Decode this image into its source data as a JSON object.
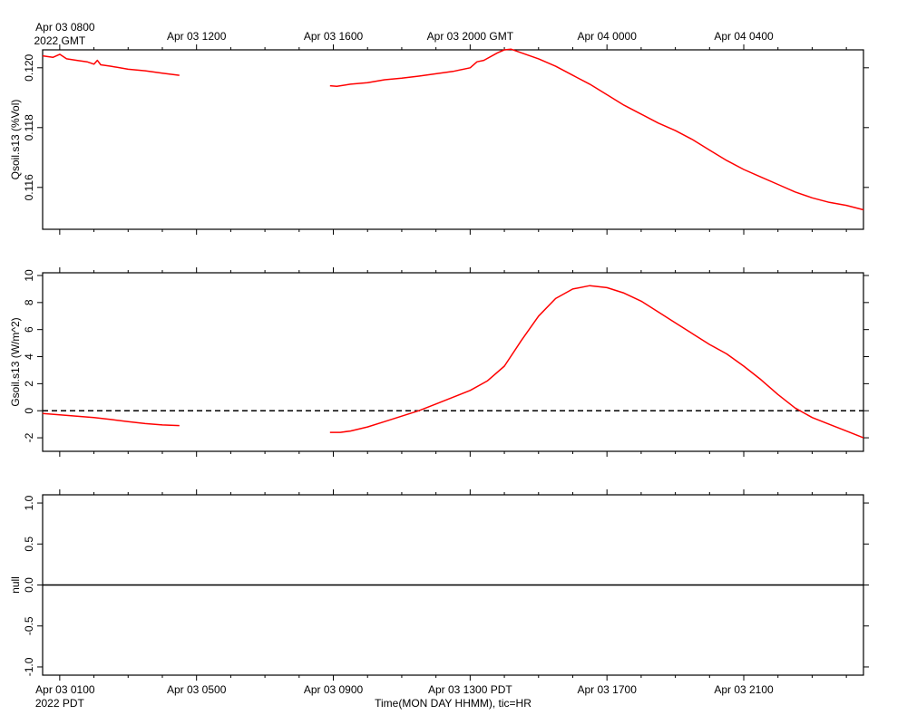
{
  "chart_data": [
    {
      "type": "line",
      "ylabel": "Qsoil.s13 (%Vol)",
      "ylim": [
        0.1146,
        0.1206
      ],
      "yticks": [
        "0.116",
        "0.118",
        "0.120"
      ],
      "xlim": [
        -0.5,
        23.5
      ],
      "top_time_axis": {
        "first_label": [
          "Apr 03 0800",
          "2022 GMT"
        ],
        "labels": [
          "Apr 03 1200",
          "Apr 03 1600",
          "Apr 03 2000 GMT",
          "Apr 04 0000",
          "Apr 04 0400"
        ]
      },
      "series": [
        {
          "color": "#ff0000",
          "segments": [
            [
              [
                -0.5,
                0.1204
              ],
              [
                -0.2,
                0.12035
              ],
              [
                0.0,
                0.12045
              ],
              [
                0.2,
                0.1203
              ],
              [
                0.5,
                0.12025
              ],
              [
                0.8,
                0.1202
              ],
              [
                1.0,
                0.12012
              ],
              [
                1.1,
                0.12025
              ],
              [
                1.2,
                0.1201
              ],
              [
                1.5,
                0.12005
              ],
              [
                2.0,
                0.11995
              ],
              [
                2.5,
                0.1199
              ],
              [
                3.0,
                0.11982
              ],
              [
                3.5,
                0.11975
              ]
            ],
            [
              [
                7.9,
                0.1194
              ],
              [
                8.1,
                0.11938
              ],
              [
                8.5,
                0.11945
              ],
              [
                9.0,
                0.1195
              ],
              [
                9.5,
                0.1196
              ],
              [
                10.0,
                0.11965
              ],
              [
                10.5,
                0.11972
              ],
              [
                11.0,
                0.1198
              ],
              [
                11.5,
                0.11988
              ],
              [
                12.0,
                0.12
              ],
              [
                12.2,
                0.1202
              ],
              [
                12.4,
                0.12025
              ],
              [
                12.8,
                0.1205
              ],
              [
                13.0,
                0.1206
              ],
              [
                13.2,
                0.12062
              ],
              [
                13.5,
                0.1205
              ],
              [
                14.0,
                0.1203
              ],
              [
                14.5,
                0.12005
              ],
              [
                15.0,
                0.11975
              ],
              [
                15.5,
                0.11945
              ],
              [
                16.0,
                0.1191
              ],
              [
                16.5,
                0.11875
              ],
              [
                17.0,
                0.11845
              ],
              [
                17.5,
                0.11815
              ],
              [
                18.0,
                0.1179
              ],
              [
                18.5,
                0.1176
              ],
              [
                19.0,
                0.11725
              ],
              [
                19.5,
                0.1169
              ],
              [
                20.0,
                0.1166
              ],
              [
                20.5,
                0.11635
              ],
              [
                21.0,
                0.1161
              ],
              [
                21.5,
                0.11585
              ],
              [
                22.0,
                0.11565
              ],
              [
                22.5,
                0.1155
              ],
              [
                23.0,
                0.1154
              ],
              [
                23.5,
                0.11525
              ]
            ]
          ]
        }
      ]
    },
    {
      "type": "line",
      "ylabel": "Gsoil.s13 (W/m^2)",
      "ylim": [
        -3,
        10.2
      ],
      "yticks": [
        "-2",
        "0",
        "2",
        "4",
        "6",
        "8",
        "10"
      ],
      "xlim": [
        -0.5,
        23.5
      ],
      "reference_line": {
        "y": 0,
        "style": "dashed",
        "color": "#000000"
      },
      "series": [
        {
          "color": "#ff0000",
          "segments": [
            [
              [
                -0.5,
                -0.2
              ],
              [
                0.0,
                -0.3
              ],
              [
                0.5,
                -0.4
              ],
              [
                1.0,
                -0.5
              ],
              [
                1.5,
                -0.65
              ],
              [
                2.0,
                -0.8
              ],
              [
                2.5,
                -0.95
              ],
              [
                3.0,
                -1.05
              ],
              [
                3.5,
                -1.1
              ]
            ],
            [
              [
                7.9,
                -1.6
              ],
              [
                8.2,
                -1.6
              ],
              [
                8.5,
                -1.5
              ],
              [
                9.0,
                -1.2
              ],
              [
                9.5,
                -0.8
              ],
              [
                10.0,
                -0.4
              ],
              [
                10.5,
                0.0
              ],
              [
                11.0,
                0.5
              ],
              [
                11.5,
                1.0
              ],
              [
                12.0,
                1.5
              ],
              [
                12.5,
                2.2
              ],
              [
                13.0,
                3.3
              ],
              [
                13.5,
                5.2
              ],
              [
                14.0,
                7.0
              ],
              [
                14.5,
                8.3
              ],
              [
                15.0,
                9.0
              ],
              [
                15.5,
                9.25
              ],
              [
                16.0,
                9.1
              ],
              [
                16.5,
                8.7
              ],
              [
                17.0,
                8.1
              ],
              [
                17.5,
                7.3
              ],
              [
                18.0,
                6.5
              ],
              [
                18.5,
                5.7
              ],
              [
                19.0,
                4.9
              ],
              [
                19.5,
                4.2
              ],
              [
                20.0,
                3.3
              ],
              [
                20.5,
                2.3
              ],
              [
                21.0,
                1.2
              ],
              [
                21.5,
                0.2
              ],
              [
                22.0,
                -0.5
              ],
              [
                22.5,
                -1.0
              ],
              [
                23.0,
                -1.5
              ],
              [
                23.5,
                -2.0
              ]
            ]
          ]
        }
      ]
    },
    {
      "type": "line",
      "ylabel": "null",
      "ylim": [
        -1.1,
        1.1
      ],
      "yticks": [
        "-1.0",
        "-0.5",
        "0.0",
        "0.5",
        "1.0"
      ],
      "xlim": [
        -0.5,
        23.5
      ],
      "bottom_time_axis": {
        "first_label": [
          "Apr 03 0100",
          "2022 PDT"
        ],
        "labels": [
          "Apr 03 0500",
          "Apr 03 0900",
          "Apr 03 1300 PDT",
          "Apr 03 1700",
          "Apr 03 2100"
        ],
        "xlabel": "Time(MON DAY HHMM), tic=HR"
      },
      "series": [
        {
          "color": "#000000",
          "segments": [
            [
              [
                -0.5,
                0.0
              ],
              [
                23.5,
                0.0
              ]
            ]
          ]
        }
      ]
    }
  ]
}
